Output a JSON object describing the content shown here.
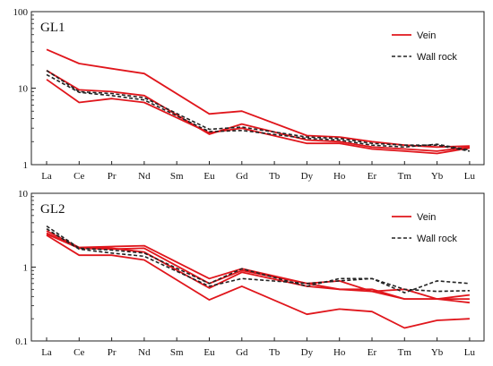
{
  "chart_data": [
    {
      "type": "line",
      "title": "GL1",
      "xlabel": "",
      "ylabel": "",
      "yscale": "log",
      "ylim": [
        1,
        100
      ],
      "yticks": [
        "1",
        "10",
        "100"
      ],
      "grid": false,
      "legend_position": "top-right",
      "categories": [
        "La",
        "Ce",
        "Pr",
        "Nd",
        "Sm",
        "Eu",
        "Gd",
        "Tb",
        "Dy",
        "Ho",
        "Er",
        "Tm",
        "Yb",
        "Lu"
      ],
      "legend": [
        {
          "label": "Vein",
          "color": "#e0161c",
          "style": "solid"
        },
        {
          "label": "Wall rock",
          "color": "#222222",
          "style": "dashed"
        }
      ],
      "series": [
        {
          "group": "vein",
          "values": [
            32,
            21,
            18,
            15.5,
            null,
            4.6,
            5.0,
            null,
            2.4,
            2.3,
            2.0,
            1.8,
            1.7,
            1.75
          ]
        },
        {
          "group": "vein",
          "values": [
            17,
            9.5,
            9.0,
            8.0,
            null,
            2.5,
            3.4,
            null,
            2.1,
            2.0,
            1.7,
            1.6,
            1.5,
            1.7
          ]
        },
        {
          "group": "vein",
          "values": [
            13,
            6.5,
            7.3,
            6.5,
            null,
            2.6,
            3.0,
            null,
            1.9,
            1.9,
            1.6,
            1.5,
            1.4,
            1.65
          ]
        },
        {
          "group": "wall",
          "values": [
            17,
            9.0,
            8.5,
            7.5,
            null,
            2.9,
            3.1,
            null,
            2.3,
            2.2,
            1.9,
            1.8,
            1.8,
            1.5
          ]
        },
        {
          "group": "wall",
          "values": [
            15,
            8.8,
            8.0,
            7.0,
            null,
            2.7,
            2.8,
            null,
            2.2,
            2.1,
            1.8,
            1.7,
            1.85,
            1.55
          ]
        }
      ]
    },
    {
      "type": "line",
      "title": "GL2",
      "xlabel": "",
      "ylabel": "",
      "yscale": "log",
      "ylim": [
        0.1,
        10
      ],
      "yticks": [
        "0.1",
        "1",
        "10"
      ],
      "grid": false,
      "legend_position": "top-right",
      "categories": [
        "La",
        "Ce",
        "Pr",
        "Nd",
        "Sm",
        "Eu",
        "Gd",
        "Tb",
        "Dy",
        "Ho",
        "Er",
        "Tm",
        "Yb",
        "Lu"
      ],
      "legend": [
        {
          "label": "Vein",
          "color": "#e0161c",
          "style": "solid"
        },
        {
          "label": "Wall rock",
          "color": "#222222",
          "style": "dashed"
        }
      ],
      "series": [
        {
          "group": "vein",
          "values": [
            3.1,
            1.85,
            1.9,
            1.95,
            null,
            0.7,
            0.95,
            null,
            0.6,
            0.65,
            0.47,
            0.5,
            0.37,
            0.42
          ]
        },
        {
          "group": "vein",
          "values": [
            2.9,
            1.8,
            1.75,
            1.8,
            null,
            0.6,
            0.9,
            null,
            0.6,
            0.5,
            0.5,
            0.37,
            0.37,
            0.37
          ]
        },
        {
          "group": "vein",
          "values": [
            2.8,
            1.8,
            1.8,
            1.6,
            null,
            0.52,
            0.85,
            null,
            0.55,
            0.5,
            0.47,
            0.37,
            0.37,
            0.33
          ]
        },
        {
          "group": "vein",
          "values": [
            2.7,
            1.45,
            1.45,
            1.25,
            null,
            0.36,
            0.55,
            null,
            0.23,
            0.27,
            0.25,
            0.15,
            0.19,
            0.2
          ]
        },
        {
          "group": "wall",
          "values": [
            3.6,
            1.8,
            1.7,
            1.55,
            null,
            0.6,
            0.95,
            null,
            0.55,
            0.7,
            0.7,
            0.45,
            0.65,
            0.6
          ]
        },
        {
          "group": "wall",
          "values": [
            3.3,
            1.75,
            1.55,
            1.4,
            null,
            0.55,
            0.7,
            null,
            0.6,
            0.65,
            0.7,
            0.5,
            0.47,
            0.48
          ]
        }
      ]
    }
  ]
}
